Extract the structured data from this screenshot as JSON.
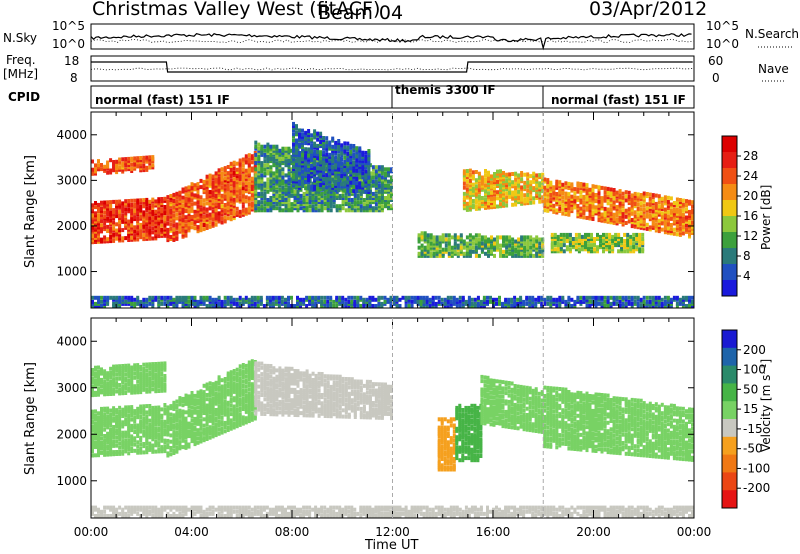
{
  "header": {
    "station": "Christmas Valley West (fitACF)",
    "beam": "Beam 04",
    "date": "03/Apr/2012"
  },
  "aux_panels": {
    "nsky_label": "N.Sky",
    "nsky_top_tick": "10^5",
    "nsky_bottom_tick": "10^0",
    "nsearch_label": "N.Search",
    "freq_label_1": "Freq.",
    "freq_label_2": "[MHz]",
    "freq_ticks": [
      "18",
      "8"
    ],
    "nave_ticks": [
      "60",
      "0"
    ],
    "nave_label": "Nave",
    "cpid_label": "CPID",
    "cpid_segments": [
      {
        "name": "normal (fast) 151 IF",
        "start_h": 0,
        "end_h": 12
      },
      {
        "name": "themis 3300 IF",
        "start_h": 12,
        "end_h": 18
      },
      {
        "name": "normal (fast) 151 IF",
        "start_h": 18,
        "end_h": 24
      }
    ]
  },
  "colors": {
    "power_scale": [
      "#1a1adc",
      "#2050c0",
      "#2a7a7a",
      "#3ca03c",
      "#8cc83c",
      "#f0c814",
      "#f58c14",
      "#f05014",
      "#e61e14",
      "#dc0000"
    ],
    "velocity_scale": [
      "#1a1ad2",
      "#1e64aa",
      "#2a8a6a",
      "#46b446",
      "#78d264",
      "#c8c8c0",
      "#f5a01e",
      "#f07814",
      "#eb4614",
      "#e61414"
    ]
  },
  "chart_data": [
    {
      "type": "heatmap",
      "name": "power",
      "ylabel": "Slant Range [km]",
      "yticks": [
        "1000",
        "2000",
        "3000",
        "4000"
      ],
      "ylim": [
        200,
        4500
      ],
      "xlim": [
        0,
        24
      ],
      "colorbar_label": "Power [dB]",
      "colorbar_ticks": [
        "4",
        "8",
        "12",
        "16",
        "20",
        "24",
        "28"
      ],
      "colorbar_range": [
        0,
        32
      ],
      "bands": [
        {
          "x": [
            0,
            3
          ],
          "y0": [
            1600,
            1700
          ],
          "y1": [
            2500,
            2600
          ],
          "value": 26
        },
        {
          "x": [
            0,
            2.5
          ],
          "y0": [
            3100,
            3200
          ],
          "y1": [
            3400,
            3500
          ],
          "value": 24
        },
        {
          "x": [
            3,
            6.5
          ],
          "y0": [
            1600,
            2300
          ],
          "y1": [
            2600,
            3600
          ],
          "value": 24
        },
        {
          "x": [
            6.5,
            12
          ],
          "y0": [
            2300,
            2300
          ],
          "y1": [
            3800,
            3200
          ],
          "value": 10
        },
        {
          "x": [
            8,
            11
          ],
          "y0": [
            2800,
            2700
          ],
          "y1": [
            4200,
            3600
          ],
          "value": 6
        },
        {
          "x": [
            13,
            18
          ],
          "y0": [
            1300,
            1300
          ],
          "y1": [
            1800,
            1700
          ],
          "value": 12
        },
        {
          "x": [
            14.8,
            18
          ],
          "y0": [
            2300,
            2500
          ],
          "y1": [
            3200,
            3100
          ],
          "value": 18
        },
        {
          "x": [
            18,
            24
          ],
          "y0": [
            2300,
            1700
          ],
          "y1": [
            3000,
            2500
          ],
          "value": 22
        },
        {
          "x": [
            18.3,
            22
          ],
          "y0": [
            1400,
            1400
          ],
          "y1": [
            1800,
            1800
          ],
          "value": 14
        },
        {
          "x": [
            0,
            24
          ],
          "y0": [
            200,
            200
          ],
          "y1": [
            400,
            400
          ],
          "value": 6
        }
      ]
    },
    {
      "type": "heatmap",
      "name": "velocity",
      "ylabel": "Slant Range [km]",
      "yticks": [
        "1000",
        "2000",
        "3000",
        "4000"
      ],
      "ylim": [
        200,
        4500
      ],
      "xlim": [
        0,
        24
      ],
      "xticks": [
        "00:00",
        "04:00",
        "08:00",
        "12:00",
        "16:00",
        "20:00",
        "00:00"
      ],
      "xlabel": "Time UT",
      "colorbar_label": "Velocity [m s⁻¹]",
      "colorbar_ticks": [
        "200",
        "100",
        "50",
        "15",
        "-15",
        "-50",
        "-100",
        "-200"
      ],
      "bands": [
        {
          "x": [
            0,
            3
          ],
          "y0": [
            1500,
            1600
          ],
          "y1": [
            2500,
            2600
          ],
          "value": 0
        },
        {
          "x": [
            0,
            3
          ],
          "y0": [
            2800,
            2900
          ],
          "y1": [
            3400,
            3500
          ],
          "value": 0
        },
        {
          "x": [
            3,
            6.5
          ],
          "y0": [
            1500,
            2300
          ],
          "y1": [
            2600,
            3600
          ],
          "value": 0
        },
        {
          "x": [
            6.5,
            12
          ],
          "y0": [
            2400,
            2300
          ],
          "y1": [
            3500,
            3000
          ],
          "value": -30
        },
        {
          "x": [
            13.8,
            14.5
          ],
          "y0": [
            1200,
            1200
          ],
          "y1": [
            2300,
            2300
          ],
          "value": -80
        },
        {
          "x": [
            14.5,
            15.5
          ],
          "y0": [
            1400,
            1400
          ],
          "y1": [
            2600,
            2600
          ],
          "value": 40
        },
        {
          "x": [
            15.5,
            18
          ],
          "y0": [
            2200,
            2000
          ],
          "y1": [
            3200,
            2900
          ],
          "value": 0
        },
        {
          "x": [
            18,
            24
          ],
          "y0": [
            1700,
            1400
          ],
          "y1": [
            3000,
            2500
          ],
          "value": 0
        },
        {
          "x": [
            0,
            24
          ],
          "y0": [
            200,
            200
          ],
          "y1": [
            400,
            400
          ],
          "value": -40
        }
      ]
    }
  ]
}
